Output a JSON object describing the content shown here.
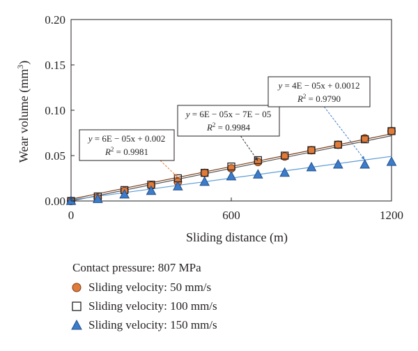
{
  "chart_data": {
    "type": "scatter",
    "title": "",
    "xlabel": "Sliding distance (m)",
    "ylabel": "Wear volume (mm",
    "ylabel_sup": "3",
    "ylabel_end": ")",
    "xlim": [
      0,
      1200
    ],
    "ylim": [
      0,
      0.2
    ],
    "x_ticks": [
      {
        "value": 0,
        "label": "0"
      },
      {
        "value": 600,
        "label": "600"
      },
      {
        "value": 1200,
        "label": "1200"
      }
    ],
    "y_ticks": [
      {
        "value": 0,
        "label": "0.00"
      },
      {
        "value": 0.05,
        "label": "0.05"
      },
      {
        "value": 0.1,
        "label": "0.10"
      },
      {
        "value": 0.15,
        "label": "0.15"
      },
      {
        "value": 0.2,
        "label": "0.20"
      }
    ],
    "grid": false,
    "legend_title": "Contact pressure: 807 MPa",
    "legend_position": "bottom",
    "series": [
      {
        "name": "Sliding velocity: 50 mm/s",
        "marker": "circle",
        "color": "#e07b39",
        "trend": {
          "slope": 6e-05,
          "intercept": 0.002,
          "color": "#7a3b15"
        },
        "x": [
          0,
          100,
          200,
          300,
          400,
          500,
          600,
          700,
          800,
          900,
          1000,
          1100,
          1200
        ],
        "y": [
          0.0,
          0.003,
          0.011,
          0.017,
          0.021,
          0.031,
          0.036,
          0.043,
          0.049,
          0.056,
          0.062,
          0.069,
          0.077
        ]
      },
      {
        "name": "Sliding velocity: 100 mm/s",
        "marker": "square",
        "color": "#ffffff",
        "trend": {
          "slope": 6e-05,
          "intercept": -7e-05,
          "color": "#555555"
        },
        "x": [
          0,
          100,
          200,
          300,
          400,
          500,
          600,
          700,
          800,
          900,
          1000,
          1100,
          1200
        ],
        "y": [
          0.0,
          0.005,
          0.012,
          0.018,
          0.025,
          0.031,
          0.038,
          0.045,
          0.05,
          0.056,
          0.062,
          0.068,
          0.077
        ]
      },
      {
        "name": "Sliding velocity: 150 mm/s",
        "marker": "triangle",
        "color": "#3d7cc9",
        "trend": {
          "slope": 4e-05,
          "intercept": 0.0012,
          "color": "#5b9bd5"
        },
        "x": [
          0,
          100,
          200,
          300,
          400,
          500,
          600,
          700,
          800,
          900,
          1000,
          1100,
          1200
        ],
        "y": [
          0.0,
          0.002,
          0.007,
          0.011,
          0.016,
          0.021,
          0.027,
          0.029,
          0.031,
          0.037,
          0.04,
          0.04,
          0.043
        ]
      }
    ],
    "annotations": [
      {
        "series": 0,
        "line1_pre": "y",
        "line1_post": " = 6E − 05x + 0.002",
        "line2_pre": "R",
        "line2_sup": "2",
        "line2_post": " = 0.9981",
        "pointer_color": "#e07b39"
      },
      {
        "series": 1,
        "line1_pre": "y",
        "line1_post": " = 6E − 05x − 7E − 05",
        "line2_pre": "R",
        "line2_sup": "2",
        "line2_post": " = 0.9984",
        "pointer_color": "#333333"
      },
      {
        "series": 2,
        "line1_pre": "y",
        "line1_post": " = 4E − 05x + 0.0012",
        "line2_pre": "R",
        "line2_sup": "2",
        "line2_post": " = 0.9790",
        "pointer_color": "#3d7cc9"
      }
    ]
  }
}
